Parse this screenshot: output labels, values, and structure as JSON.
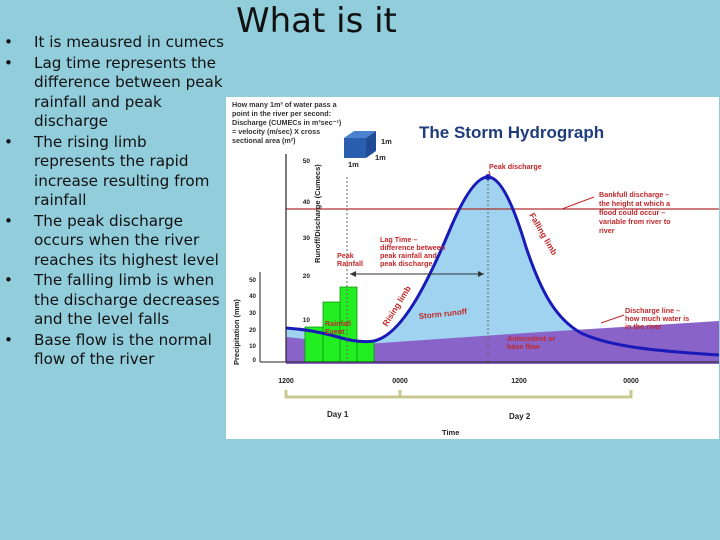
{
  "slide": {
    "title": "What is it",
    "bullets": [
      {
        "marker": "•",
        "text": "It is meausred in cumecs"
      },
      {
        "marker": "•",
        "text": "Lag time represents the difference between peak rainfall and peak discharge"
      },
      {
        "marker": "•",
        "text": "The rising limb represents the rapid increase resulting from rainfall"
      },
      {
        "marker": "•",
        "text": "The peak discharge occurs when the river reaches its highest level"
      },
      {
        "marker": "•",
        "text": "The falling limb is when the discharge decreases and the level falls"
      },
      {
        "marker": "•",
        "text": "Base flow is the normal flow of the river"
      }
    ]
  },
  "figure": {
    "title": "The Storm Hydrograph",
    "explain_lines": [
      "How many 1m³ of water pass a",
      "point in the river per second:",
      "Discharge (CUMECs in m³sec⁻¹)",
      "= velocity (m/sec) X cross",
      "sectional area (m²)"
    ],
    "cube_labels": {
      "side": "1m",
      "bottom_left": "1m",
      "bottom_right": "1m"
    },
    "y_axis_discharge_label": "Runoff/Discharge (Cumecs)",
    "y_axis_precip_label": "Precipitation (mm)",
    "discharge_ticks": [
      "50",
      "40",
      "30",
      "20",
      "10"
    ],
    "precip_ticks": [
      "50",
      "40",
      "30",
      "20",
      "10",
      "0"
    ],
    "time_ticks": [
      "1200",
      "0000",
      "1200",
      "0000"
    ],
    "day_labels": [
      "Day 1",
      "Day 2"
    ],
    "time_label": "Time",
    "labels": {
      "peak_discharge": "Peak discharge",
      "bankfull": [
        "Bankfull discharge –",
        "the height at which a",
        "flood could occur –",
        "variable from river to",
        "river"
      ],
      "lag_time": [
        "Lag Time –",
        "difference between",
        "peak rainfall and",
        "peak discharge"
      ],
      "peak_rainfall": [
        "Peak",
        "Rainfall"
      ],
      "rainfall_event": [
        "Rainfall",
        "Event"
      ],
      "rising_limb": "Rising limb",
      "falling_limb": "Falling limb",
      "storm_runoff": "Storm runoff",
      "discharge_line": [
        "Discharge line –",
        "how much water is",
        "in the river"
      ],
      "base_flow": [
        "Antecedent or",
        "base flow"
      ]
    },
    "colors": {
      "title": "#1f3d7a",
      "runoff": "#9fd3f0",
      "baseflow": "#8a63c9",
      "discharge_line": "#1a1ab8",
      "rain_bars": "#22ee22",
      "labels": "#c0282a",
      "cube": "#2a5fb0"
    }
  }
}
